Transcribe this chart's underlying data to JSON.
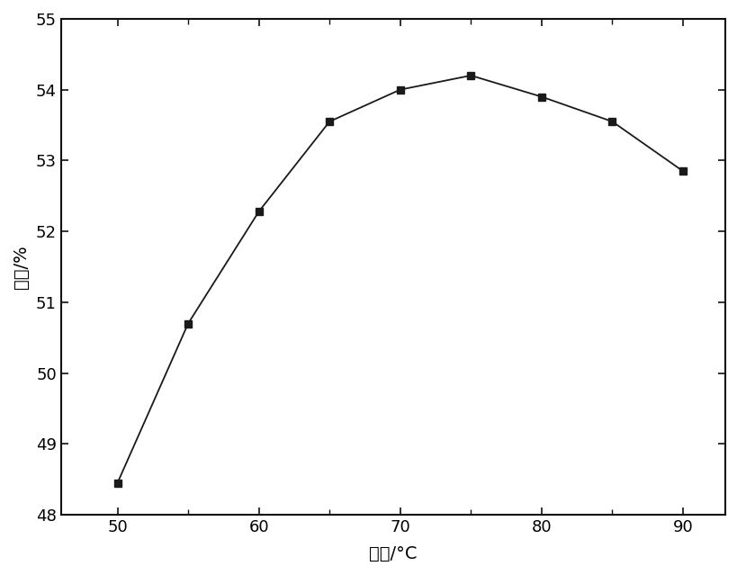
{
  "x": [
    50,
    55,
    60,
    65,
    70,
    75,
    80,
    85,
    90
  ],
  "y": [
    48.45,
    50.7,
    52.28,
    53.55,
    54.0,
    54.2,
    53.9,
    53.55,
    52.85
  ],
  "xlabel": "温度/°C",
  "ylabel": "产率/%",
  "xlim": [
    46,
    93
  ],
  "ylim": [
    48,
    55
  ],
  "yticks": [
    48,
    49,
    50,
    51,
    52,
    53,
    54,
    55
  ],
  "xticks_major": [
    50,
    60,
    70,
    80,
    90
  ],
  "xticks_minor": [
    55,
    65,
    75,
    85
  ],
  "line_color": "#1a1a1a",
  "marker": "s",
  "marker_color": "#1a1a1a",
  "marker_size": 6,
  "line_width": 1.3,
  "background_color": "#ffffff",
  "xlabel_fontsize": 14,
  "ylabel_fontsize": 14,
  "tick_fontsize": 13
}
